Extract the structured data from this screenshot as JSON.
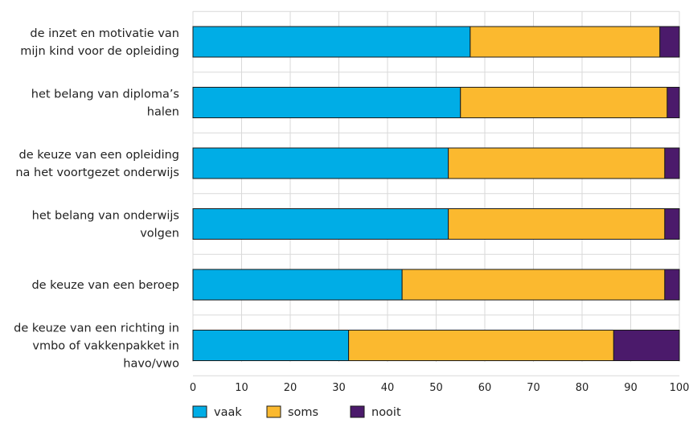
{
  "chart_data": {
    "type": "bar",
    "orientation": "horizontal",
    "stacked": true,
    "title": "",
    "xlabel": "",
    "ylabel": "",
    "xlim": [
      0,
      100
    ],
    "x_ticks": [
      "0",
      "10",
      "20",
      "30",
      "40",
      "50",
      "60",
      "70",
      "80",
      "90",
      "100"
    ],
    "grid": true,
    "legend_position": "bottom-left",
    "categories": [
      [
        "de inzet en motivatie van",
        "mijn kind voor de opleiding"
      ],
      [
        "het belang van diploma’s",
        "halen"
      ],
      [
        "de keuze van een opleiding",
        "na het voortgezet onderwijs"
      ],
      [
        "het belang van onderwijs",
        "volgen"
      ],
      [
        "de keuze van een beroep"
      ],
      [
        "de keuze van een richting in",
        "vmbo of vakkenpakket in",
        "havo/vwo"
      ]
    ],
    "series": [
      {
        "name": "vaak",
        "color": "#00ade6",
        "values": [
          57,
          55,
          52.5,
          52.5,
          43,
          32
        ]
      },
      {
        "name": "soms",
        "color": "#fbb92f",
        "values": [
          39,
          42.5,
          44.5,
          44.5,
          54,
          54.5
        ]
      },
      {
        "name": "nooit",
        "color": "#4b1a6b",
        "values": [
          4,
          2.5,
          3,
          3,
          3,
          13.5
        ]
      }
    ]
  }
}
